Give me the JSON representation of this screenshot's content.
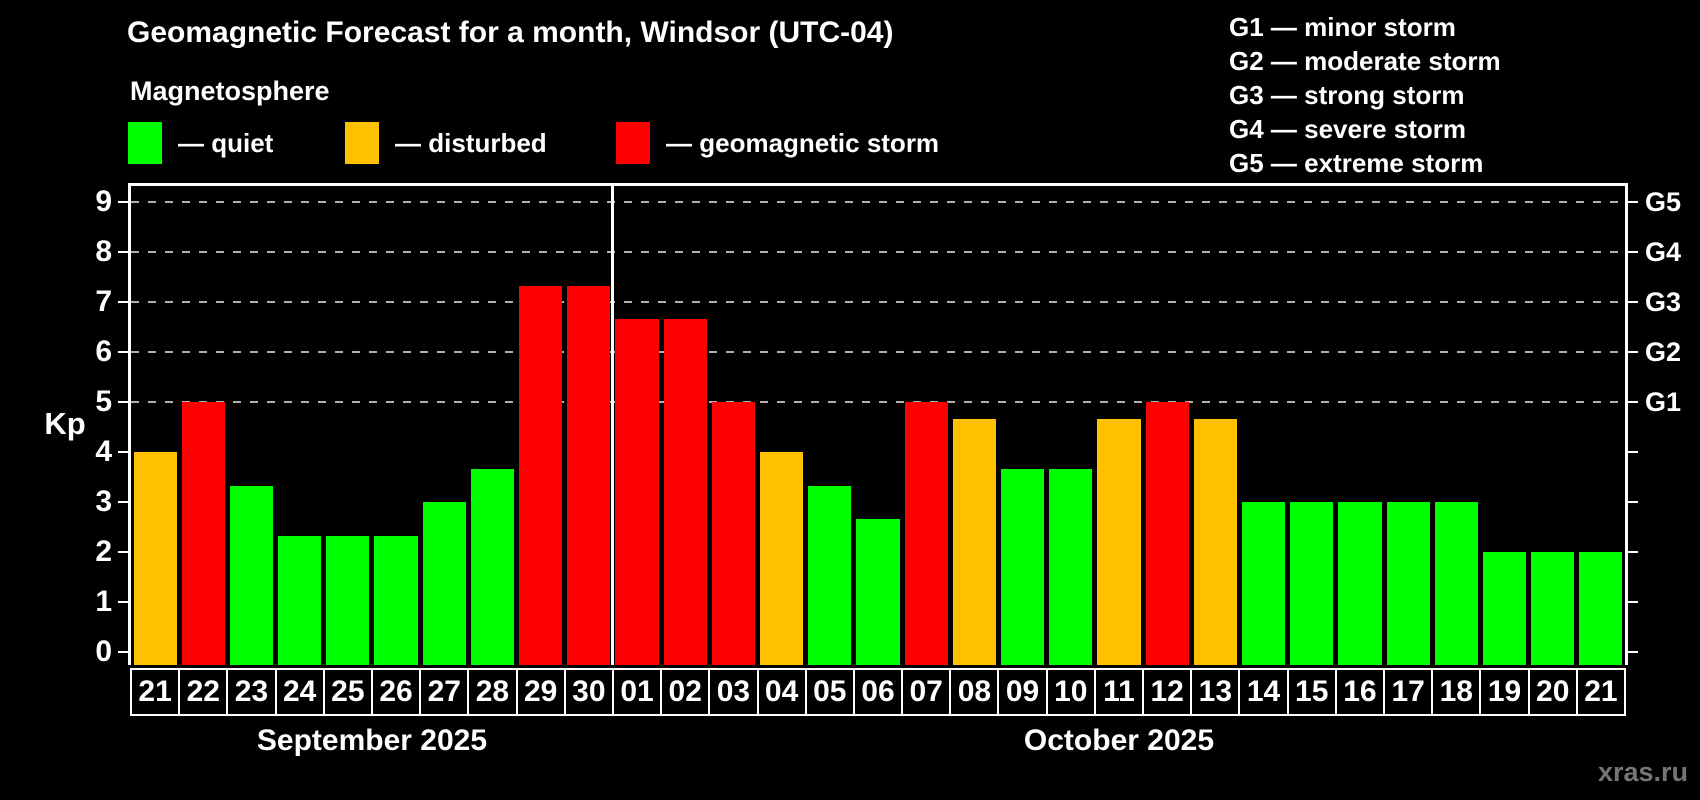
{
  "header": {
    "title": "Geomagnetic Forecast for a month, Windsor (UTC-04)",
    "subtitle": "Magnetosphere"
  },
  "legend": {
    "items": [
      {
        "level": "quiet",
        "label": "— quiet"
      },
      {
        "level": "disturbed",
        "label": "— disturbed"
      },
      {
        "level": "storm",
        "label": "— geomagnetic storm"
      }
    ]
  },
  "g_scale": [
    "G1 — minor storm",
    "G2 — moderate storm",
    "G3 — strong storm",
    "G4 — severe storm",
    "G5 — extreme storm"
  ],
  "colors": {
    "quiet": "#00ff00",
    "disturbed": "#ffc000",
    "storm": "#ff0000",
    "background": "#000000",
    "axis": "#ffffff",
    "grid": "#b0b0b0",
    "watermark": "#757575"
  },
  "axes": {
    "y_left": {
      "title": "Kp",
      "ticks": [
        "0",
        "1",
        "2",
        "3",
        "4",
        "5",
        "6",
        "7",
        "8",
        "9"
      ]
    },
    "y_right": {
      "g_labels": [
        {
          "kp": 5,
          "label": "G1"
        },
        {
          "kp": 6,
          "label": "G2"
        },
        {
          "kp": 7,
          "label": "G3"
        },
        {
          "kp": 8,
          "label": "G4"
        },
        {
          "kp": 9,
          "label": "G5"
        }
      ]
    }
  },
  "chart_data": {
    "type": "bar",
    "ylabel": "Kp",
    "ylim": [
      0,
      9
    ],
    "grid": "dashed horizontal at Kp 5-9",
    "grid_levels": [
      5,
      6,
      7,
      8,
      9
    ],
    "months": [
      {
        "label": "September 2025",
        "days": [
          {
            "day": "21",
            "kp": 4,
            "level": "disturbed"
          },
          {
            "day": "22",
            "kp": 5,
            "level": "storm"
          },
          {
            "day": "23",
            "kp": 3.33,
            "level": "quiet"
          },
          {
            "day": "24",
            "kp": 2.33,
            "level": "quiet"
          },
          {
            "day": "25",
            "kp": 2.33,
            "level": "quiet"
          },
          {
            "day": "26",
            "kp": 2.33,
            "level": "quiet"
          },
          {
            "day": "27",
            "kp": 3,
            "level": "quiet"
          },
          {
            "day": "28",
            "kp": 3.67,
            "level": "quiet"
          },
          {
            "day": "29",
            "kp": 7.33,
            "level": "storm"
          },
          {
            "day": "30",
            "kp": 7.33,
            "level": "storm"
          }
        ]
      },
      {
        "label": "October 2025",
        "days": [
          {
            "day": "01",
            "kp": 6.67,
            "level": "storm"
          },
          {
            "day": "02",
            "kp": 6.67,
            "level": "storm"
          },
          {
            "day": "03",
            "kp": 5,
            "level": "storm"
          },
          {
            "day": "04",
            "kp": 4,
            "level": "disturbed"
          },
          {
            "day": "05",
            "kp": 3.33,
            "level": "quiet"
          },
          {
            "day": "06",
            "kp": 2.67,
            "level": "quiet"
          },
          {
            "day": "07",
            "kp": 5,
            "level": "storm"
          },
          {
            "day": "08",
            "kp": 4.67,
            "level": "disturbed"
          },
          {
            "day": "09",
            "kp": 3.67,
            "level": "quiet"
          },
          {
            "day": "10",
            "kp": 3.67,
            "level": "quiet"
          },
          {
            "day": "11",
            "kp": 4.67,
            "level": "disturbed"
          },
          {
            "day": "12",
            "kp": 5,
            "level": "storm"
          },
          {
            "day": "13",
            "kp": 4.67,
            "level": "disturbed"
          },
          {
            "day": "14",
            "kp": 3,
            "level": "quiet"
          },
          {
            "day": "15",
            "kp": 3,
            "level": "quiet"
          },
          {
            "day": "16",
            "kp": 3,
            "level": "quiet"
          },
          {
            "day": "17",
            "kp": 3,
            "level": "quiet"
          },
          {
            "day": "18",
            "kp": 3,
            "level": "quiet"
          },
          {
            "day": "19",
            "kp": 2,
            "level": "quiet"
          },
          {
            "day": "20",
            "kp": 2,
            "level": "quiet"
          },
          {
            "day": "21",
            "kp": 2,
            "level": "quiet"
          }
        ]
      }
    ]
  },
  "watermark": "xras.ru"
}
